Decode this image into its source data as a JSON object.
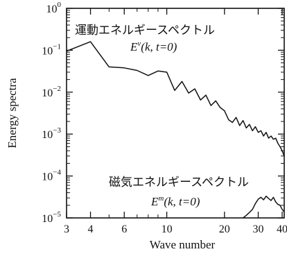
{
  "chart_data": {
    "type": "line",
    "title": "",
    "xlabel": "Wave number",
    "ylabel": "Energy spectra",
    "x_scale": "log",
    "y_scale": "log",
    "xlim": [
      3,
      41
    ],
    "ylim": [
      1e-05,
      1
    ],
    "x_ticks": [
      3,
      4,
      6,
      10,
      20,
      30,
      40
    ],
    "x_tick_labels": [
      "3",
      "4",
      "6",
      "10",
      "20",
      "30",
      "40"
    ],
    "y_ticks": [
      1,
      0.1,
      0.01,
      0.001,
      0.0001,
      1e-05
    ],
    "y_tick_labels": [
      {
        "base": "10",
        "exp": "0"
      },
      {
        "base": "10",
        "exp": "−1"
      },
      {
        "base": "10",
        "exp": "−2"
      },
      {
        "base": "10",
        "exp": "−3"
      },
      {
        "base": "10",
        "exp": "−4"
      },
      {
        "base": "10",
        "exp": "−5"
      }
    ],
    "grid": false,
    "legend": "none",
    "series": [
      {
        "x": [
          3,
          4,
          5,
          6,
          7,
          8,
          9,
          10,
          11,
          12,
          13,
          14,
          15,
          16,
          17,
          18,
          19,
          20,
          21,
          22,
          23,
          24,
          25,
          26,
          27,
          28,
          29,
          30,
          31,
          32,
          33,
          34,
          35,
          36,
          37,
          38,
          39,
          40,
          41
        ],
        "y": [
          0.095,
          0.16,
          0.04,
          0.038,
          0.033,
          0.025,
          0.032,
          0.03,
          0.011,
          0.018,
          0.0095,
          0.012,
          0.0065,
          0.0085,
          0.0048,
          0.0062,
          0.0043,
          0.0036,
          0.0022,
          0.0019,
          0.0025,
          0.0016,
          0.0021,
          0.0014,
          0.0017,
          0.0012,
          0.0015,
          0.0011,
          0.0012,
          0.0009,
          0.0011,
          0.0008,
          0.0009,
          0.00075,
          0.0008,
          0.0006,
          0.0005,
          0.0004,
          0.0003
        ]
      },
      {
        "x": [
          25,
          26,
          27,
          28,
          29,
          30,
          31,
          32,
          33,
          34,
          35,
          36,
          37,
          38,
          39,
          40,
          41
        ],
        "y": [
          1e-05,
          1.15e-05,
          1.35e-05,
          1.6e-05,
          2.2e-05,
          2.8e-05,
          3.1e-05,
          2.7e-05,
          3.3e-05,
          2.9e-05,
          2.6e-05,
          3.1e-05,
          2.4e-05,
          2.1e-05,
          2e-05,
          1.6e-05,
          1.4e-05
        ]
      }
    ],
    "annotations": [
      {
        "line1": "運動エネルギースペクトル",
        "line2_symbol": "E",
        "line2_sup": "v",
        "line2_args": "(k, t=0)"
      },
      {
        "line1": "磁気エネルギースペクトル",
        "line2_symbol": "E",
        "line2_sup": "m",
        "line2_args": "(k, t=0)"
      }
    ]
  }
}
